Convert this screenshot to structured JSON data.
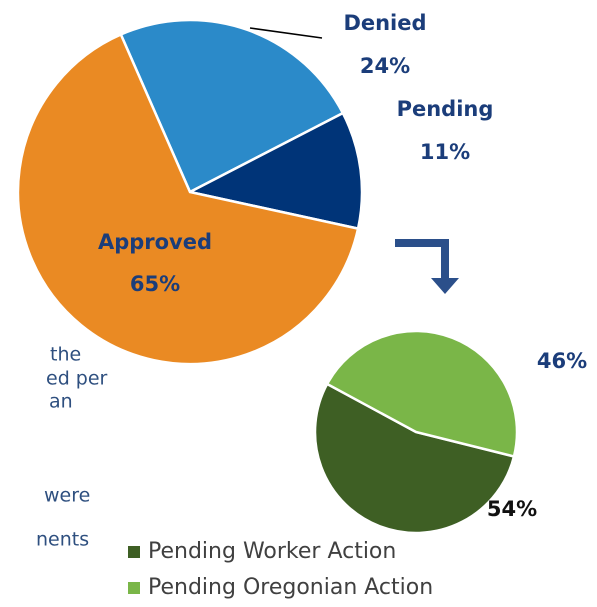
{
  "chart_data": [
    {
      "type": "pie",
      "categories": [
        "Denied",
        "Pending",
        "Approved"
      ],
      "values": [
        24,
        11,
        65
      ],
      "value_labels": [
        "24%",
        "11%",
        "65%"
      ],
      "colors": [
        "#2b8ac9",
        "#003478",
        "#ea8a23"
      ]
    },
    {
      "type": "pie",
      "categories": [
        "Pending Worker Action",
        "Pending Oregonian Action"
      ],
      "values": [
        54,
        46
      ],
      "value_labels": [
        "54%",
        "46%"
      ],
      "colors": [
        "#3e5f24",
        "#7ab648"
      ],
      "legend": true
    }
  ],
  "side_text": [
    "the",
    "ed per",
    "an",
    "were",
    "nents"
  ]
}
